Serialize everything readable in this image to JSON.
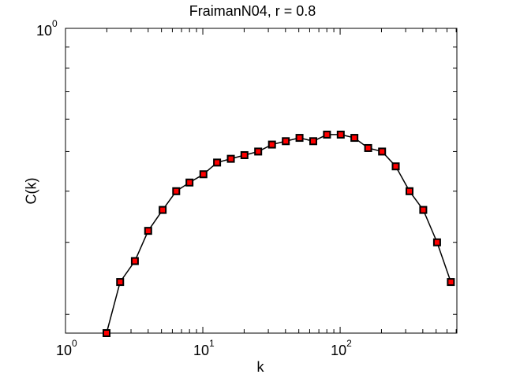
{
  "chart_data": {
    "type": "line",
    "title": "FraimanN04, r = 0.8",
    "xlabel": "k",
    "ylabel": "C(k)",
    "xscale": "log",
    "yscale": "log",
    "xlim": [
      1,
      708
    ],
    "ylim": [
      0.18,
      1
    ],
    "grid": false,
    "legend": null,
    "x_tick_labels": [
      "10^0",
      "10^1",
      "10^2"
    ],
    "y_tick_labels": [
      "10^0"
    ],
    "marker": "square",
    "marker_face_color": "#ff0000",
    "marker_edge_color": "#000000",
    "line_color": "#000000",
    "series": [
      {
        "name": "C(k)",
        "x": [
          1.99,
          2.5,
          3.2,
          4.0,
          5.1,
          6.4,
          8.0,
          10.1,
          12.7,
          16.0,
          20.1,
          25.3,
          31.9,
          40.2,
          50.6,
          63.7,
          80.2,
          101,
          127,
          160,
          202,
          254,
          320,
          403,
          508,
          640
        ],
        "y": [
          0.18,
          0.24,
          0.27,
          0.32,
          0.36,
          0.4,
          0.42,
          0.44,
          0.47,
          0.48,
          0.49,
          0.5,
          0.52,
          0.53,
          0.54,
          0.53,
          0.55,
          0.55,
          0.54,
          0.51,
          0.5,
          0.46,
          0.4,
          0.36,
          0.3,
          0.24
        ]
      }
    ]
  },
  "labels": {
    "title": "FraimanN04, r = 0.8",
    "xlabel": "k",
    "ylabel": "C(k)",
    "x_ticks": [
      {
        "base": "10",
        "exp": "0"
      },
      {
        "base": "10",
        "exp": "1"
      },
      {
        "base": "10",
        "exp": "2"
      }
    ],
    "y_ticks": [
      {
        "base": "10",
        "exp": "0"
      }
    ]
  }
}
